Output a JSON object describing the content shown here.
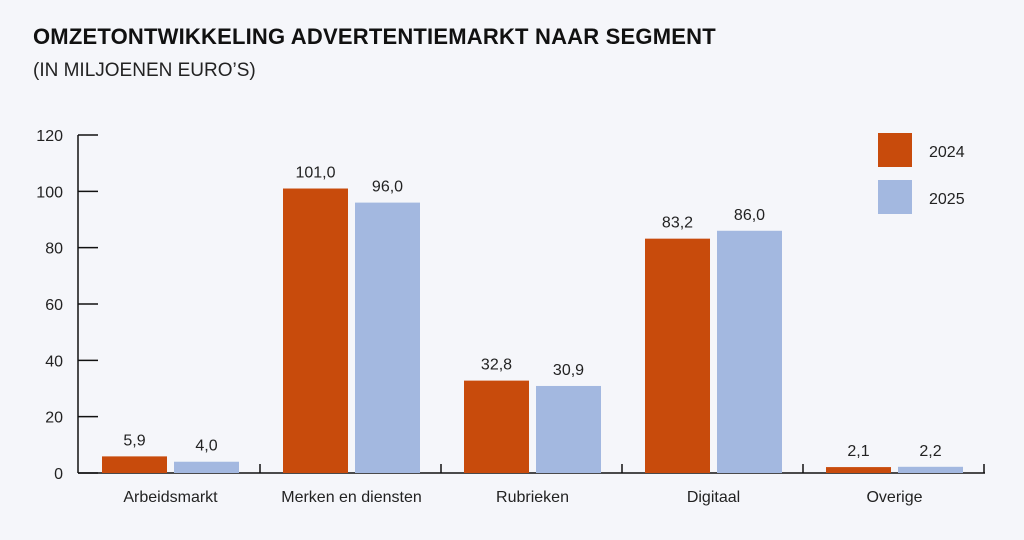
{
  "title": "OMZETONTWIKKELING ADVERTENTIEMARKT NAAR SEGMENT",
  "subtitle": "(IN MILJOENEN EURO’S)",
  "chart_data": {
    "type": "bar",
    "title": "OMZETONTWIKKELING ADVERTENTIEMARKT NAAR SEGMENT",
    "subtitle": "(IN MILJOENEN EURO’S)",
    "xlabel": "",
    "ylabel": "",
    "ylim": [
      0,
      120
    ],
    "yticks": [
      0,
      20,
      40,
      60,
      80,
      100,
      120
    ],
    "grid": false,
    "legend_position": "top-right",
    "categories": [
      "Arbeidsmarkt",
      "Merken en diensten",
      "Rubrieken",
      "Digitaal",
      "Overige"
    ],
    "series": [
      {
        "name": "2024",
        "color": "#c84b0c",
        "values": [
          5.9,
          101.0,
          32.8,
          83.2,
          2.1
        ],
        "labels": [
          "5,9",
          "101,0",
          "32,8",
          "83,2",
          "2,1"
        ]
      },
      {
        "name": "2025",
        "color": "#a3b8e0",
        "values": [
          4.0,
          96.0,
          30.9,
          86.0,
          2.2
        ],
        "labels": [
          "4,0",
          "96,0",
          "30,9",
          "86,0",
          "2,2"
        ]
      }
    ]
  }
}
